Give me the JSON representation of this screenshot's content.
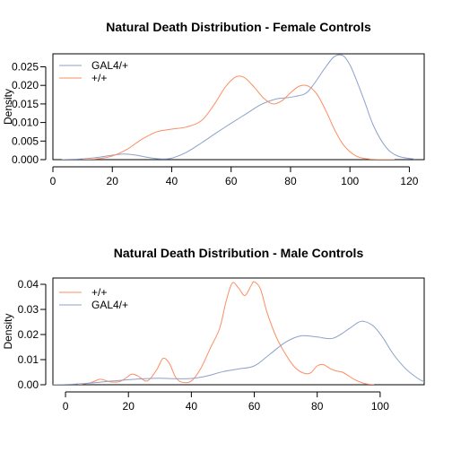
{
  "chart_data": [
    {
      "type": "line",
      "title": "Natural Death Distribution - Female Controls",
      "xlabel": "",
      "ylabel": "Density",
      "xlim": [
        0,
        125
      ],
      "ylim": [
        0,
        0.0285
      ],
      "xticks": [
        0,
        20,
        40,
        60,
        80,
        100,
        120
      ],
      "xtick_labels": [
        "0",
        "20",
        "40",
        "60",
        "80",
        "100",
        "120"
      ],
      "yticks": [
        0,
        0.005,
        0.01,
        0.015,
        0.02,
        0.025
      ],
      "ytick_labels": [
        "0.000",
        "0.005",
        "0.010",
        "0.015",
        "0.020",
        "0.025"
      ],
      "grid": false,
      "legend_position": "top-left",
      "series": [
        {
          "name": "GAL4/+",
          "color": "#8da0cb",
          "x": [
            3,
            10,
            15,
            20,
            24,
            28,
            32,
            36,
            40,
            45,
            50,
            55,
            60,
            65,
            70,
            75,
            80,
            85,
            88,
            91,
            94,
            96,
            98,
            100,
            102,
            105,
            108,
            112,
            116,
            122
          ],
          "y": [
            0.0,
            0.0002,
            0.0006,
            0.0012,
            0.0015,
            0.0012,
            0.0006,
            0.0002,
            0.0004,
            0.002,
            0.0045,
            0.0072,
            0.0098,
            0.0123,
            0.0148,
            0.0163,
            0.0168,
            0.0178,
            0.0205,
            0.024,
            0.0272,
            0.0282,
            0.0278,
            0.0255,
            0.0218,
            0.0155,
            0.009,
            0.0035,
            0.001,
            0.0001
          ]
        },
        {
          "name": "+/+",
          "color": "#fc8d62",
          "x": [
            10,
            15,
            20,
            25,
            30,
            35,
            40,
            45,
            50,
            54,
            58,
            61,
            63,
            65,
            68,
            71,
            74,
            77,
            80,
            83,
            86,
            89,
            92,
            95,
            98,
            102,
            106,
            110,
            115
          ],
          "y": [
            0.0,
            0.0002,
            0.001,
            0.0028,
            0.0055,
            0.0075,
            0.0082,
            0.0088,
            0.0105,
            0.0145,
            0.0195,
            0.022,
            0.0225,
            0.0218,
            0.0193,
            0.0165,
            0.015,
            0.0158,
            0.018,
            0.0198,
            0.0198,
            0.0175,
            0.013,
            0.0078,
            0.0038,
            0.001,
            0.0002,
            0.0,
            0.0
          ]
        }
      ]
    },
    {
      "type": "line",
      "title": "Natural Death Distribution - Male Controls",
      "xlabel": "",
      "ylabel": "Density",
      "xlim": [
        -4,
        114
      ],
      "ylim": [
        0,
        0.0425
      ],
      "xticks": [
        0,
        20,
        40,
        60,
        80,
        100
      ],
      "xtick_labels": [
        "0",
        "20",
        "40",
        "60",
        "80",
        "100"
      ],
      "yticks": [
        0,
        0.01,
        0.02,
        0.03,
        0.04
      ],
      "ytick_labels": [
        "0.00",
        "0.01",
        "0.02",
        "0.03",
        "0.04"
      ],
      "grid": false,
      "legend_position": "top-left",
      "series": [
        {
          "name": "+/+",
          "color": "#fc8d62",
          "x": [
            4,
            8,
            11,
            14,
            17,
            19,
            21,
            23,
            26,
            29,
            31,
            33,
            35,
            37,
            40,
            43,
            46,
            49,
            51,
            53,
            55,
            57,
            59,
            60,
            62,
            64,
            67,
            70,
            73,
            76,
            78,
            80,
            82,
            84,
            86,
            88,
            90,
            92,
            95,
            98
          ],
          "y": [
            0.0,
            0.0008,
            0.0022,
            0.0012,
            0.0012,
            0.0025,
            0.0042,
            0.0035,
            0.0015,
            0.006,
            0.0105,
            0.0085,
            0.003,
            0.001,
            0.0015,
            0.0065,
            0.0145,
            0.0225,
            0.033,
            0.0405,
            0.0385,
            0.0355,
            0.0395,
            0.041,
            0.038,
            0.029,
            0.019,
            0.012,
            0.0068,
            0.0045,
            0.0048,
            0.0075,
            0.008,
            0.0065,
            0.0055,
            0.005,
            0.0035,
            0.002,
            0.0005,
            0.0
          ]
        },
        {
          "name": "GAL4/+",
          "color": "#8da0cb",
          "x": [
            -4,
            0,
            5,
            10,
            15,
            20,
            25,
            30,
            35,
            40,
            45,
            50,
            55,
            60,
            65,
            70,
            75,
            80,
            85,
            90,
            93,
            95,
            98,
            101,
            104,
            108,
            112,
            114
          ],
          "y": [
            0.0,
            0.0001,
            0.0004,
            0.0009,
            0.0015,
            0.002,
            0.0024,
            0.0026,
            0.0024,
            0.0025,
            0.0035,
            0.0052,
            0.0063,
            0.0075,
            0.0122,
            0.017,
            0.0195,
            0.019,
            0.0185,
            0.0222,
            0.0248,
            0.0252,
            0.0232,
            0.0185,
            0.0125,
            0.0065,
            0.0025,
            0.0012
          ]
        }
      ]
    }
  ]
}
